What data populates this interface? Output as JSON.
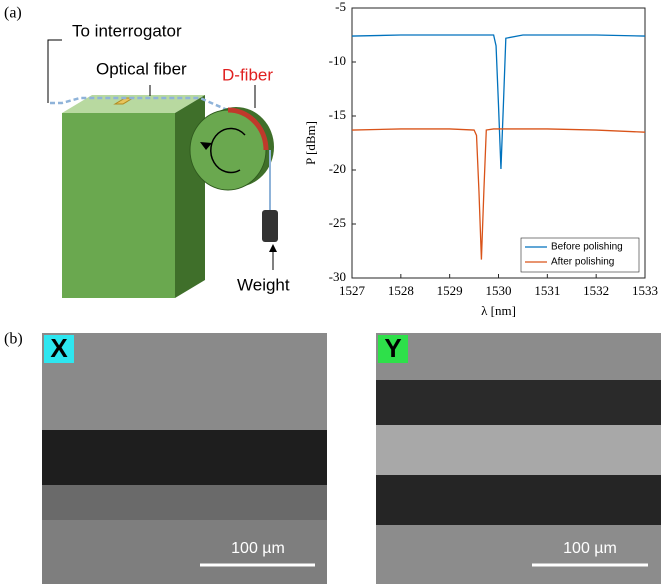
{
  "panel_labels": [
    "(a)",
    "(b)"
  ],
  "diagram": {
    "to_interrogator": "To interrogator",
    "optical_fiber": "Optical fiber",
    "d_fiber": "D-fiber",
    "weight": "Weight"
  },
  "chart_data": {
    "type": "line",
    "xlabel": "λ [nm]",
    "ylabel": "P [dBm]",
    "x": [
      1527,
      1528,
      1529,
      1529.5,
      1529.55,
      1529.6,
      1529.65,
      1529.7,
      1529.75,
      1529.9,
      1529.95,
      1530.0,
      1530.05,
      1530.1,
      1530.15,
      1530.5,
      1531,
      1532,
      1533
    ],
    "series": [
      {
        "name": "Before polishing",
        "color": "#0072bd",
        "values": [
          -7.6,
          -7.5,
          -7.5,
          -7.5,
          -7.5,
          -7.5,
          -7.5,
          -7.5,
          -7.5,
          -7.5,
          -8.5,
          -14,
          -19.9,
          -14,
          -7.8,
          -7.5,
          -7.5,
          -7.5,
          -7.6
        ]
      },
      {
        "name": "After polishing",
        "color": "#d95319",
        "values": [
          -16.3,
          -16.2,
          -16.2,
          -16.3,
          -16.8,
          -22,
          -28.3,
          -22,
          -16.3,
          -16.2,
          -16.2,
          -16.2,
          -16.2,
          -16.2,
          -16.2,
          -16.2,
          -16.2,
          -16.3,
          -16.5
        ]
      }
    ],
    "xlim": [
      1527,
      1533
    ],
    "xticks": [
      1527,
      1528,
      1529,
      1530,
      1531,
      1532,
      1533
    ],
    "ylim": [
      -30,
      -5
    ],
    "yticks": [
      -30,
      -25,
      -20,
      -15,
      -10,
      -5
    ],
    "legend": "lower-right"
  },
  "images": [
    {
      "label": "X",
      "scale_bar": "100 µm"
    },
    {
      "label": "Y",
      "scale_bar": "100 µm"
    }
  ]
}
